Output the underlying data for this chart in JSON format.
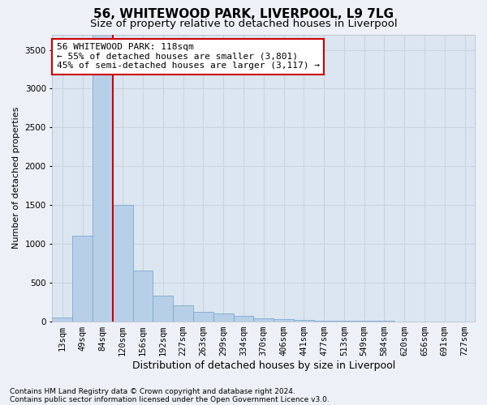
{
  "title1": "56, WHITEWOOD PARK, LIVERPOOL, L9 7LG",
  "title2": "Size of property relative to detached houses in Liverpool",
  "xlabel": "Distribution of detached houses by size in Liverpool",
  "ylabel": "Number of detached properties",
  "footnote1": "Contains HM Land Registry data © Crown copyright and database right 2024.",
  "footnote2": "Contains public sector information licensed under the Open Government Licence v3.0.",
  "bar_labels": [
    "13sqm",
    "49sqm",
    "84sqm",
    "120sqm",
    "156sqm",
    "192sqm",
    "227sqm",
    "263sqm",
    "299sqm",
    "334sqm",
    "370sqm",
    "406sqm",
    "441sqm",
    "477sqm",
    "513sqm",
    "549sqm",
    "584sqm",
    "620sqm",
    "656sqm",
    "691sqm",
    "727sqm"
  ],
  "bar_values": [
    50,
    1100,
    3800,
    1500,
    650,
    330,
    200,
    120,
    100,
    70,
    40,
    25,
    15,
    8,
    4,
    2,
    1,
    0,
    0,
    0,
    0
  ],
  "bar_color": "#b8cfe8",
  "bar_edge_color": "#7aaad0",
  "bg_color": "#edf1f7",
  "plot_bg_color": "#dce6f0",
  "grid_color": "#c8d4e4",
  "vline_x": 2.5,
  "vline_color": "#cc0000",
  "annotation_text": "56 WHITEWOOD PARK: 118sqm\n← 55% of detached houses are smaller (3,801)\n45% of semi-detached houses are larger (3,117) →",
  "annotation_box_color": "#ffffff",
  "annotation_box_edge": "#cc0000",
  "ylim": [
    0,
    3700
  ],
  "yticks": [
    0,
    500,
    1000,
    1500,
    2000,
    2500,
    3000,
    3500
  ],
  "title1_fontsize": 11,
  "title2_fontsize": 9.5,
  "xlabel_fontsize": 9,
  "ylabel_fontsize": 8,
  "tick_fontsize": 7.5,
  "annot_fontsize": 8,
  "footnote_fontsize": 6.5
}
